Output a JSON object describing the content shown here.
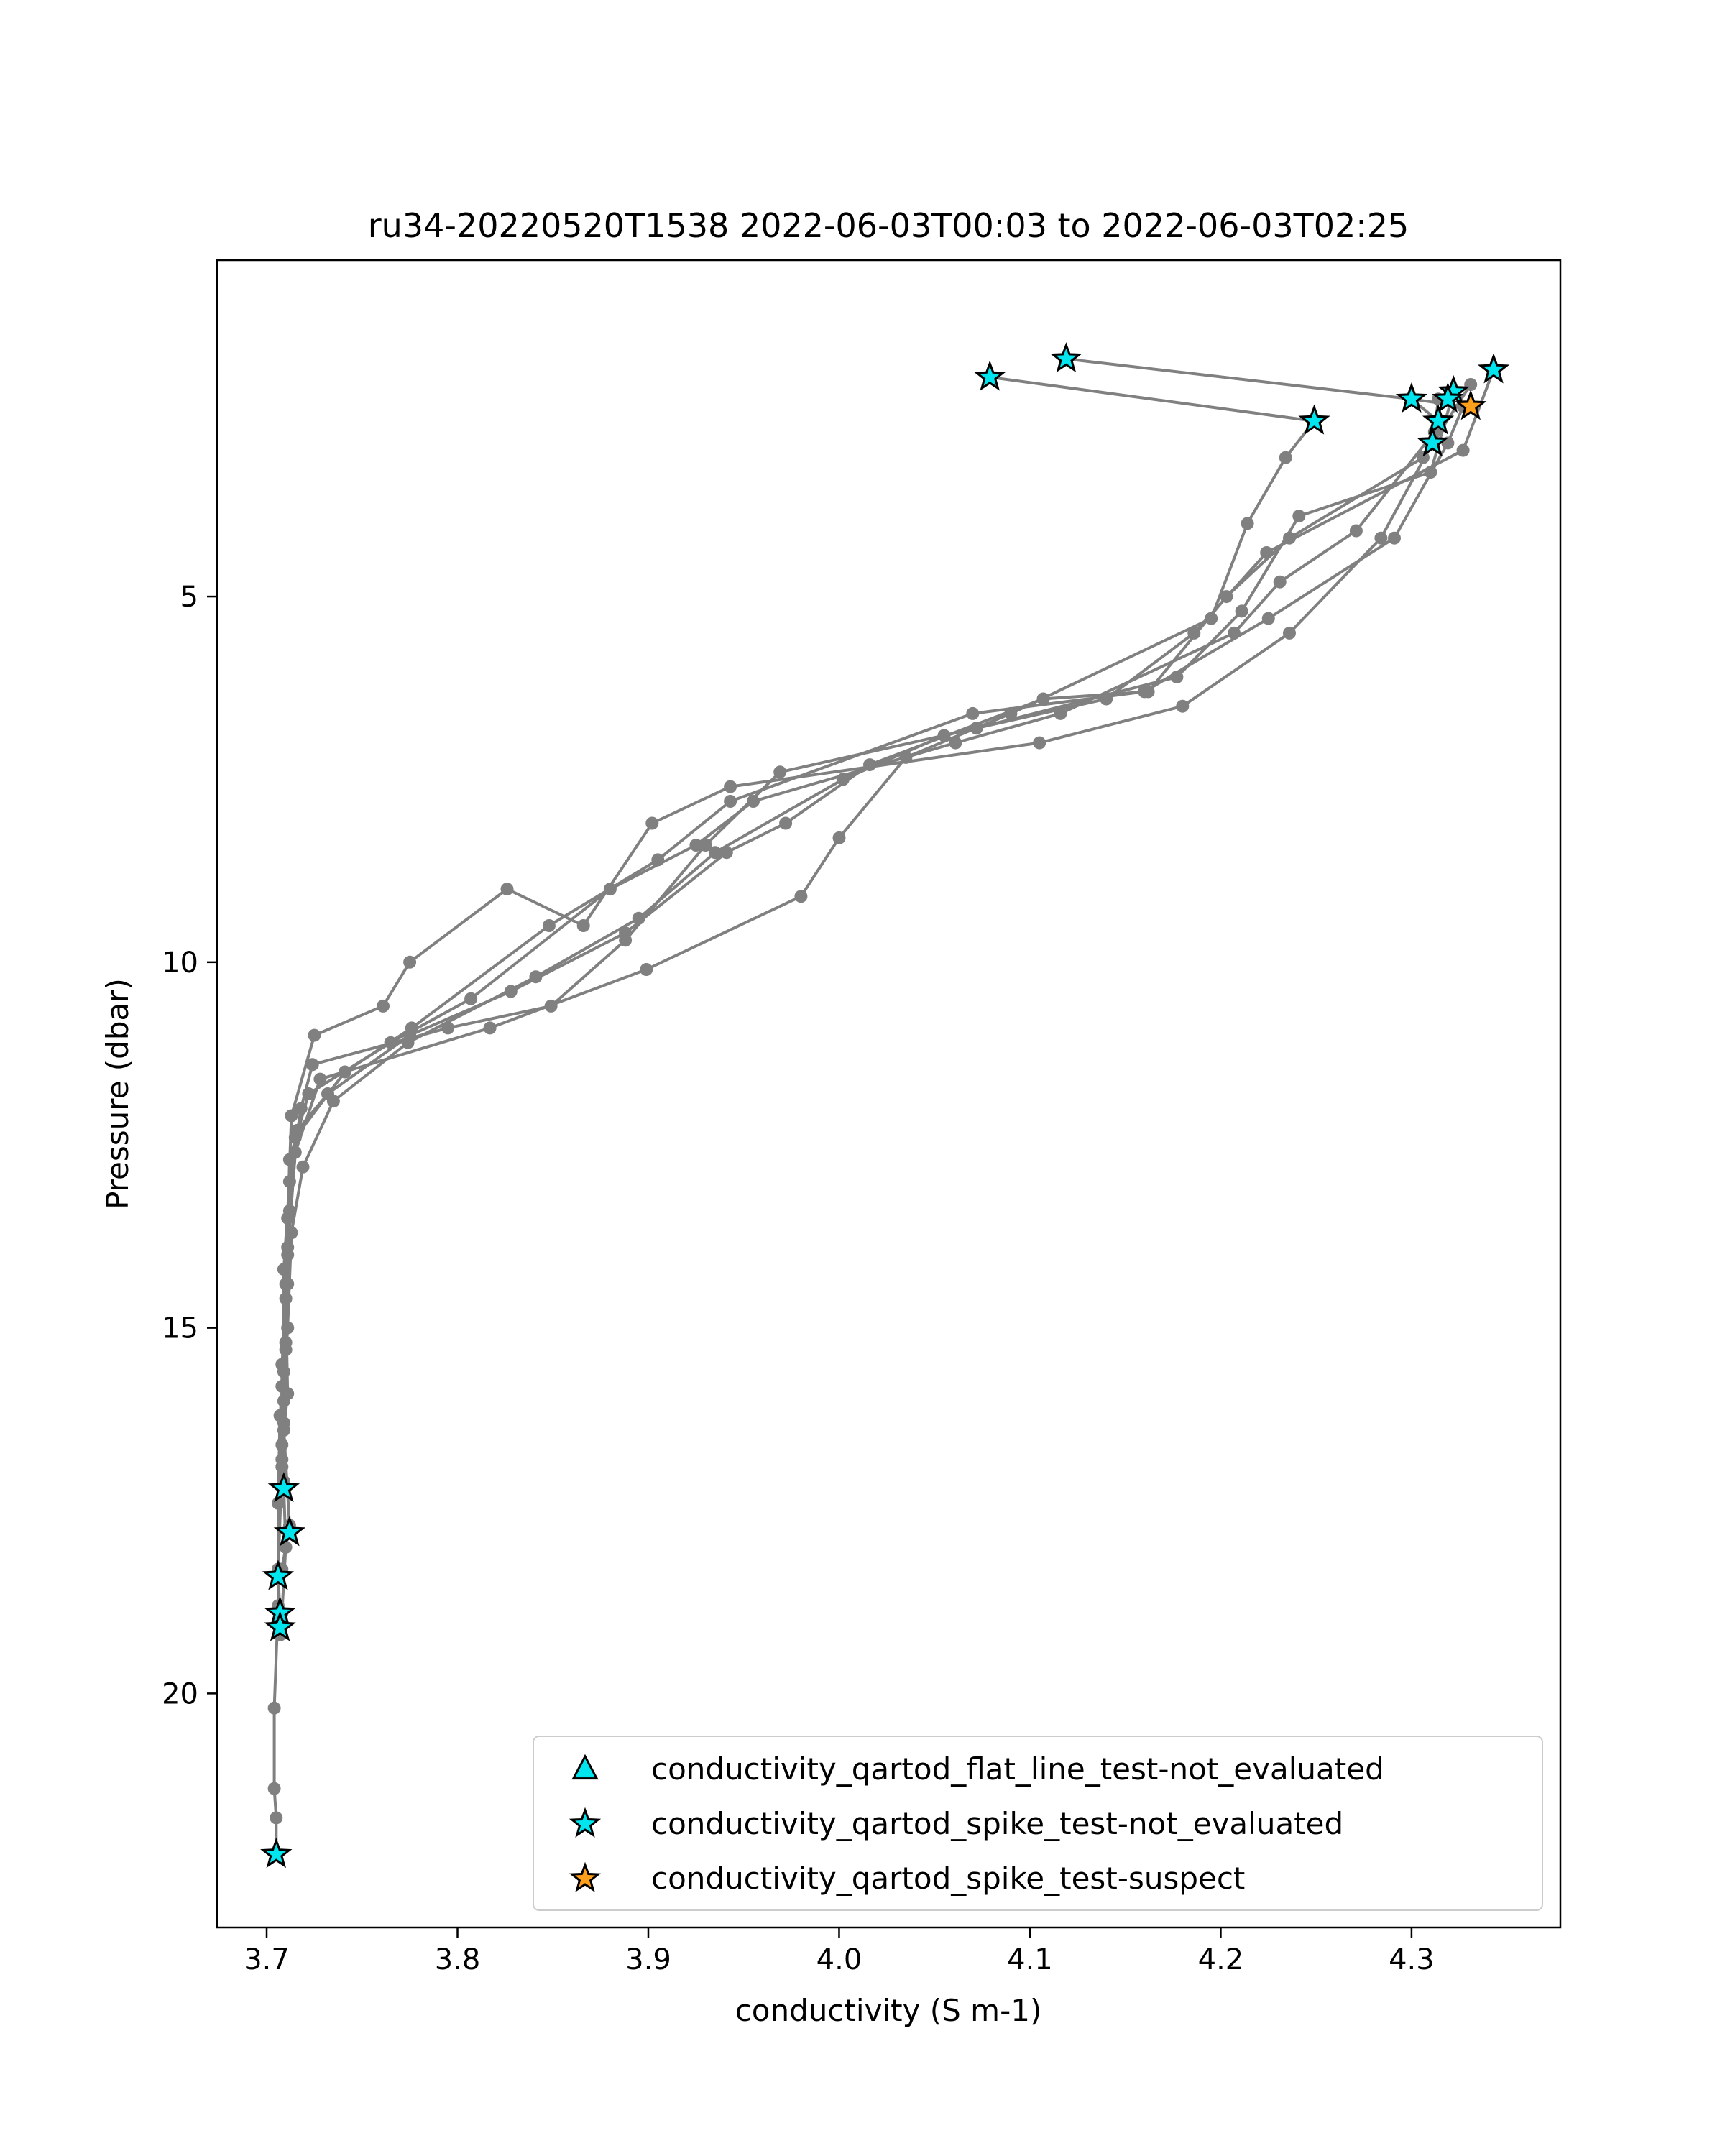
{
  "chart_data": {
    "type": "line",
    "title": "ru34-20220520T1538 2022-06-03T00:03 to 2022-06-03T02:25",
    "xlabel": "conductivity (S m-1)",
    "ylabel": "Pressure (dbar)",
    "xlim": [
      3.674,
      4.378
    ],
    "ylim": [
      23.2,
      0.4
    ],
    "y_inverted": true,
    "xticks": [
      "3.7",
      "3.8",
      "3.9",
      "4.0",
      "4.1",
      "4.2",
      "4.3"
    ],
    "yticks": [
      "5",
      "10",
      "15",
      "20"
    ],
    "grid": false,
    "legend_position": "lower-right",
    "line_color": "#808080",
    "colors": {
      "not_evaluated": "#00e5ee",
      "suspect": "#ff9f1c",
      "edge": "#000000"
    },
    "series": [
      {
        "points": [
          [
            4.079,
            2.0
          ],
          [
            4.249,
            2.6
          ],
          [
            4.234,
            3.1
          ],
          [
            4.214,
            4.0
          ],
          [
            4.195,
            5.3
          ],
          [
            4.09,
            6.6
          ],
          [
            4.035,
            7.2
          ],
          [
            4.0,
            8.3
          ],
          [
            3.98,
            9.1
          ],
          [
            3.899,
            10.1
          ],
          [
            3.817,
            10.9
          ],
          [
            3.728,
            11.6
          ],
          [
            3.715,
            12.6
          ],
          [
            3.711,
            14.0
          ],
          [
            3.71,
            15.2
          ],
          [
            3.709,
            16.3
          ],
          [
            3.709,
            17.2
          ],
          [
            3.71,
            18.0
          ],
          [
            3.708,
            18.9
          ],
          [
            3.707,
            19.2
          ]
        ]
      },
      {
        "points": [
          [
            4.119,
            1.75
          ],
          [
            4.3,
            2.3
          ],
          [
            4.314,
            2.6
          ],
          [
            4.311,
            2.9
          ],
          [
            4.284,
            4.2
          ],
          [
            4.236,
            5.5
          ],
          [
            4.18,
            6.5
          ],
          [
            4.105,
            7.0
          ],
          [
            3.943,
            7.6
          ],
          [
            3.902,
            8.1
          ],
          [
            3.866,
            9.5
          ],
          [
            3.826,
            9.0
          ],
          [
            3.775,
            10.0
          ],
          [
            3.761,
            10.6
          ],
          [
            3.725,
            11.0
          ],
          [
            3.713,
            12.1
          ],
          [
            3.711,
            13.5
          ],
          [
            3.71,
            14.4
          ],
          [
            3.708,
            15.8
          ],
          [
            3.708,
            16.6
          ]
        ]
      },
      {
        "points": [
          [
            4.3,
            2.3
          ],
          [
            4.327,
            2.4
          ],
          [
            4.319,
            2.9
          ],
          [
            4.291,
            4.2
          ],
          [
            4.225,
            5.3
          ],
          [
            4.16,
            6.3
          ],
          [
            4.07,
            6.6
          ],
          [
            3.943,
            7.8
          ],
          [
            3.905,
            8.6
          ],
          [
            3.848,
            9.5
          ],
          [
            3.776,
            10.9
          ],
          [
            3.741,
            11.5
          ],
          [
            3.715,
            12.4
          ],
          [
            3.712,
            13.4
          ],
          [
            3.71,
            14.6
          ],
          [
            3.711,
            15.9
          ],
          [
            3.709,
            16.4
          ],
          [
            3.712,
            17.7
          ],
          [
            3.708,
            18.3
          ]
        ]
      },
      {
        "points": [
          [
            4.343,
            1.9
          ],
          [
            4.327,
            3.0
          ],
          [
            4.224,
            4.4
          ],
          [
            4.186,
            5.5
          ],
          [
            4.14,
            6.4
          ],
          [
            4.055,
            6.9
          ],
          [
            4.002,
            7.5
          ],
          [
            3.935,
            8.5
          ],
          [
            3.895,
            9.4
          ],
          [
            3.841,
            10.2
          ],
          [
            3.774,
            11.1
          ],
          [
            3.735,
            11.9
          ],
          [
            3.719,
            12.8
          ],
          [
            3.713,
            13.7
          ],
          [
            3.711,
            15.0
          ],
          [
            3.709,
            16.0
          ],
          [
            3.709,
            17.1
          ]
        ]
      },
      {
        "points": [
          [
            4.322,
            2.2
          ],
          [
            4.31,
            3.3
          ],
          [
            4.241,
            3.9
          ],
          [
            4.211,
            5.2
          ],
          [
            4.177,
            6.1
          ],
          [
            4.072,
            6.8
          ],
          [
            3.969,
            7.4
          ],
          [
            3.93,
            8.4
          ],
          [
            3.888,
            9.7
          ],
          [
            3.849,
            10.6
          ],
          [
            3.795,
            10.9
          ],
          [
            3.724,
            11.4
          ],
          [
            3.718,
            12.0
          ],
          [
            3.712,
            13.0
          ],
          [
            3.709,
            14.2
          ],
          [
            3.709,
            15.6
          ],
          [
            3.708,
            16.9
          ],
          [
            3.706,
            18.3
          ],
          [
            3.707,
            19.0
          ]
        ]
      },
      {
        "points": [
          [
            4.331,
            2.1
          ],
          [
            4.306,
            3.1
          ],
          [
            4.236,
            4.2
          ],
          [
            4.203,
            5.0
          ],
          [
            4.162,
            6.3
          ],
          [
            4.107,
            6.4
          ],
          [
            4.016,
            7.3
          ],
          [
            3.972,
            8.1
          ],
          [
            3.941,
            8.5
          ],
          [
            3.888,
            9.6
          ],
          [
            3.828,
            10.4
          ],
          [
            3.775,
            11.0
          ],
          [
            3.732,
            11.8
          ],
          [
            3.716,
            12.3
          ],
          [
            3.711,
            13.9
          ],
          [
            3.71,
            15.3
          ],
          [
            3.707,
            16.2
          ],
          [
            3.706,
            17.4
          ],
          [
            3.706,
            18.8
          ],
          [
            3.704,
            20.2
          ],
          [
            3.704,
            21.3
          ],
          [
            3.705,
            21.7
          ],
          [
            3.705,
            22.2
          ]
        ]
      },
      {
        "points": [
          [
            4.314,
            2.3
          ],
          [
            4.312,
            2.75
          ],
          [
            4.271,
            4.1
          ],
          [
            4.231,
            4.8
          ],
          [
            4.207,
            5.5
          ],
          [
            4.116,
            6.6
          ],
          [
            4.061,
            7.0
          ],
          [
            3.955,
            7.8
          ],
          [
            3.925,
            8.4
          ],
          [
            3.88,
            9.0
          ],
          [
            3.807,
            10.5
          ],
          [
            3.765,
            11.1
          ],
          [
            3.722,
            11.8
          ],
          [
            3.712,
            12.7
          ],
          [
            3.711,
            14.4
          ],
          [
            3.708,
            15.5
          ],
          [
            3.708,
            16.8
          ]
        ]
      }
    ],
    "markers": [
      {
        "x": 4.119,
        "y": 1.75,
        "flag": "not_evaluated"
      },
      {
        "x": 4.079,
        "y": 2.0,
        "flag": "not_evaluated"
      },
      {
        "x": 4.249,
        "y": 2.6,
        "flag": "not_evaluated"
      },
      {
        "x": 4.3,
        "y": 2.3,
        "flag": "not_evaluated"
      },
      {
        "x": 4.322,
        "y": 2.2,
        "flag": "not_evaluated"
      },
      {
        "x": 4.319,
        "y": 2.3,
        "flag": "not_evaluated"
      },
      {
        "x": 4.343,
        "y": 1.9,
        "flag": "not_evaluated"
      },
      {
        "x": 4.331,
        "y": 2.4,
        "flag": "suspect"
      },
      {
        "x": 4.314,
        "y": 2.6,
        "flag": "not_evaluated"
      },
      {
        "x": 4.311,
        "y": 2.9,
        "flag": "not_evaluated"
      },
      {
        "x": 3.709,
        "y": 17.2,
        "flag": "not_evaluated"
      },
      {
        "x": 3.712,
        "y": 17.8,
        "flag": "not_evaluated"
      },
      {
        "x": 3.706,
        "y": 18.4,
        "flag": "not_evaluated"
      },
      {
        "x": 3.707,
        "y": 18.9,
        "flag": "not_evaluated"
      },
      {
        "x": 3.707,
        "y": 19.1,
        "flag": "not_evaluated"
      },
      {
        "x": 3.705,
        "y": 22.2,
        "flag": "not_evaluated"
      }
    ],
    "legend": [
      {
        "label": "conductivity_qartod_flat_line_test-not_evaluated",
        "marker": "triangle",
        "flag": "not_evaluated"
      },
      {
        "label": "conductivity_qartod_spike_test-not_evaluated",
        "marker": "star",
        "flag": "not_evaluated"
      },
      {
        "label": "conductivity_qartod_spike_test-suspect",
        "marker": "star",
        "flag": "suspect"
      }
    ]
  }
}
